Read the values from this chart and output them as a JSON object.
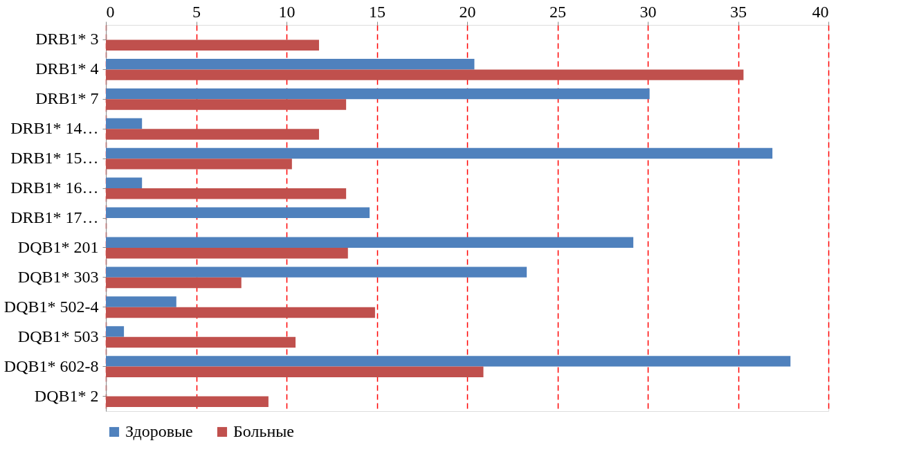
{
  "chart_data": {
    "type": "bar",
    "orientation": "horizontal",
    "categories": [
      "DRB1* 3",
      "DRB1* 4",
      "DRB1* 7",
      "DRB1* 14…",
      "DRB1* 15…",
      "DRB1* 16…",
      "DRB1* 17…",
      "DQB1* 201",
      "DQB1* 303",
      "DQB1* 502-4",
      "DQB1* 503",
      "DQB1* 602-8",
      "DQB1* 2"
    ],
    "series": [
      {
        "name": "Здоровые",
        "color": "#4f81bd",
        "values": [
          null,
          20.4,
          30.1,
          2,
          36.9,
          2,
          14.6,
          29.2,
          23.3,
          3.9,
          1.0,
          37.9,
          null
        ]
      },
      {
        "name": "Больные",
        "color": "#c0504d",
        "values": [
          11.8,
          35.3,
          13.3,
          11.8,
          10.3,
          13.3,
          null,
          13.4,
          7.5,
          14.9,
          10.5,
          20.9,
          9.0
        ]
      }
    ],
    "xlim": [
      0,
      40
    ],
    "xticks": [
      0,
      5,
      10,
      15,
      20,
      25,
      30,
      35,
      40
    ],
    "grid": "x",
    "legend": "bottom"
  }
}
